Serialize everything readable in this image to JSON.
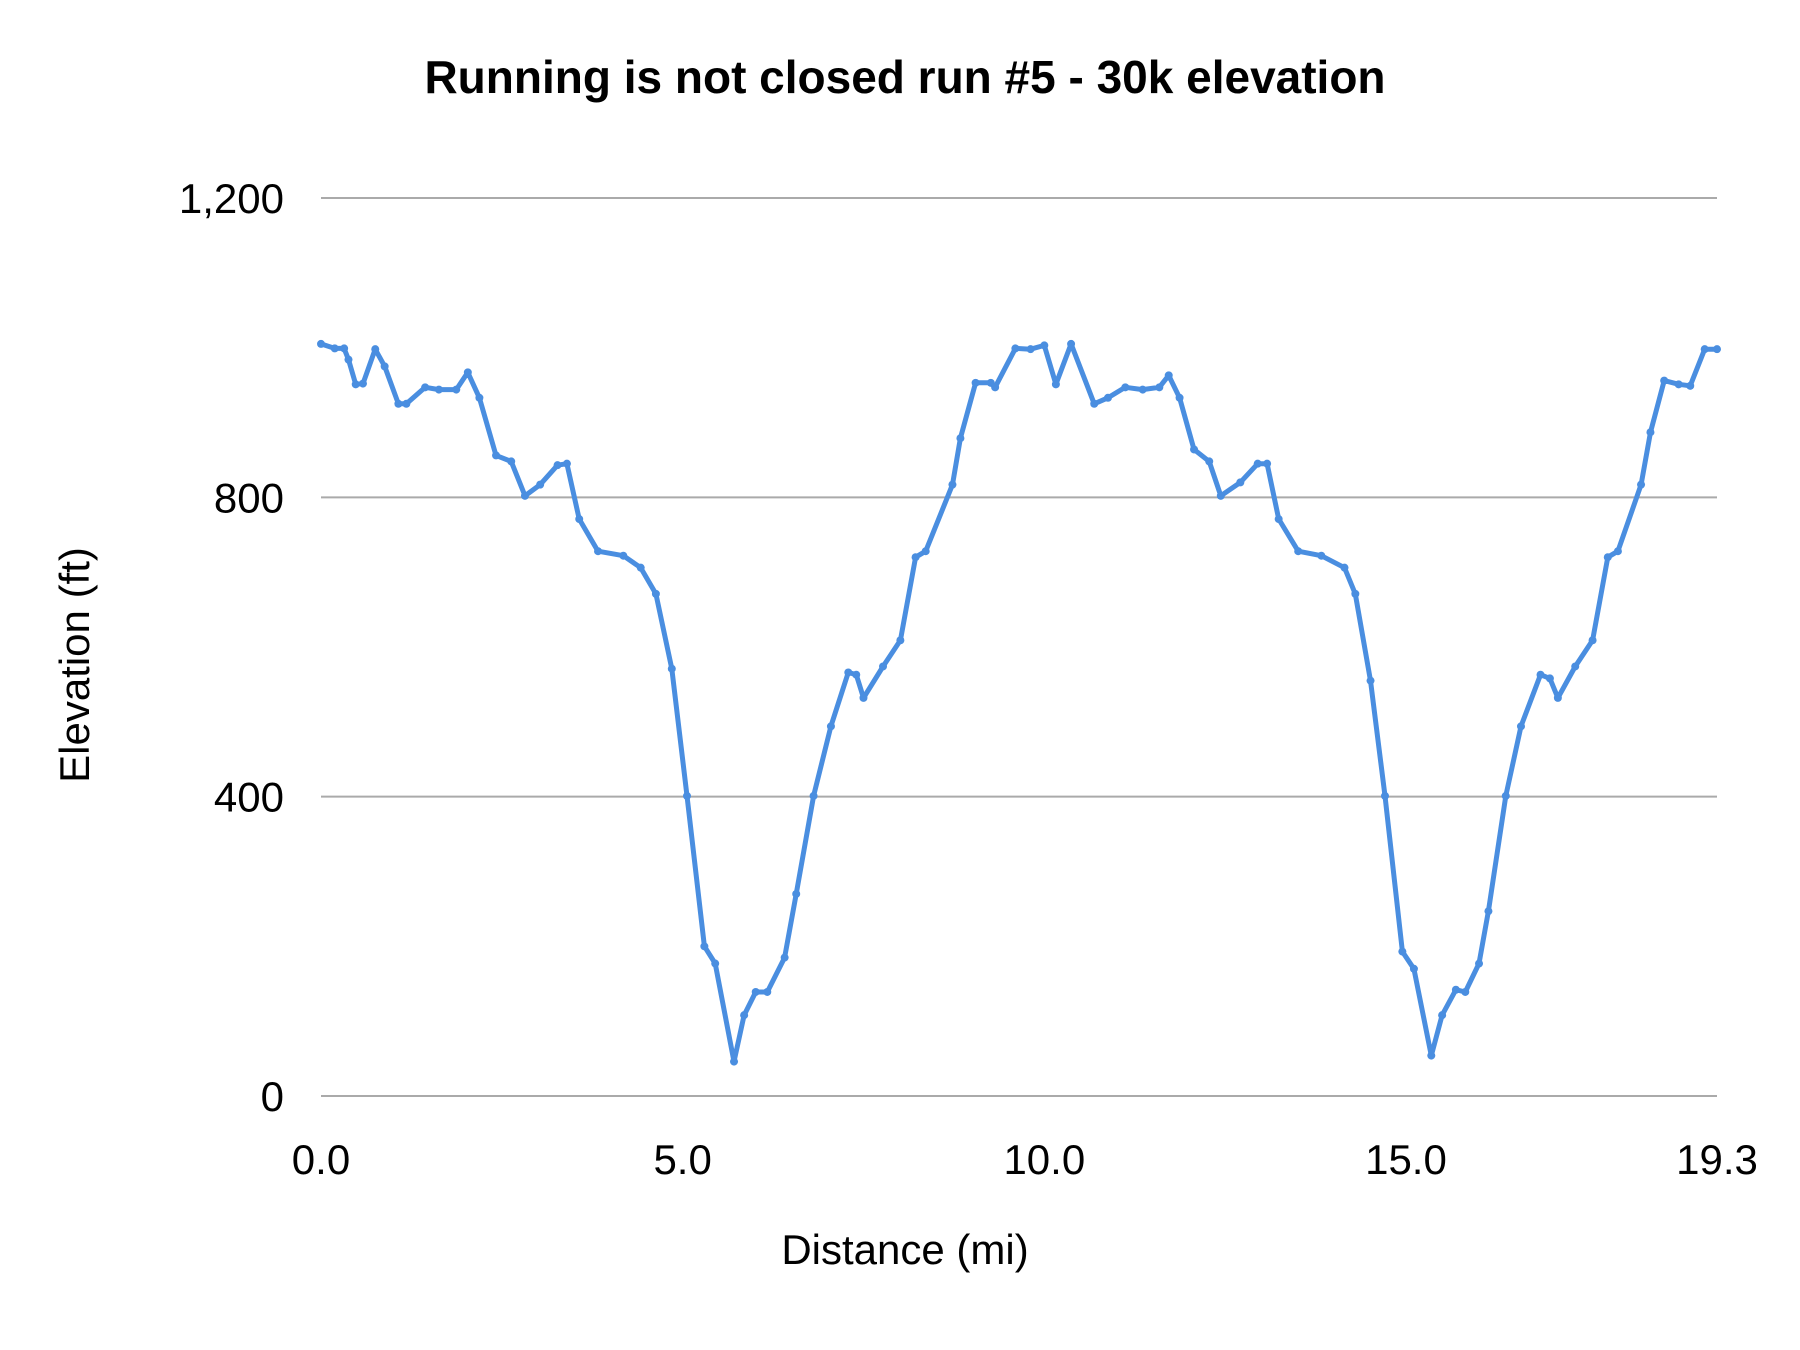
{
  "chart_data": {
    "type": "line",
    "title": "Running is not closed run #5 - 30k elevation",
    "xlabel": "Distance (mi)",
    "ylabel": "Elevation (ft)",
    "xlim": [
      0,
      19.3
    ],
    "ylim": [
      0,
      1200
    ],
    "x_ticks": [
      "0.0",
      "5.0",
      "10.0",
      "15.0",
      "19.3"
    ],
    "x_tick_values": [
      0,
      5,
      10,
      15,
      19.3
    ],
    "y_ticks": [
      "0",
      "400",
      "800",
      "1,200"
    ],
    "y_tick_values": [
      0,
      400,
      800,
      1200
    ],
    "grid": "horizontal",
    "legend": "none",
    "series_color": "#4a8ee0",
    "grid_color": "#aaaaaa",
    "series": [
      {
        "x": [
          0,
          0.19,
          0.32,
          0.38,
          0.48,
          0.58,
          0.75,
          0.88,
          1.07,
          1.18,
          1.44,
          1.63,
          1.87,
          2.03,
          2.19,
          2.42,
          2.63,
          2.82,
          3.03,
          3.27,
          3.4,
          3.57,
          3.83,
          4.18,
          4.42,
          4.63,
          4.85,
          5.06,
          5.3,
          5.45,
          5.71,
          5.85,
          6.01,
          6.17,
          6.41,
          6.57,
          6.81,
          7.05,
          7.29,
          7.4,
          7.5,
          7.77,
          8.01,
          8.22,
          8.36,
          8.73,
          8.84,
          9.05,
          9.26,
          9.32,
          9.6,
          9.81,
          10.0,
          10.16,
          10.37,
          10.69,
          10.88,
          11.12,
          11.36,
          11.59,
          11.72,
          11.87,
          12.07,
          12.28,
          12.44,
          12.71,
          12.95,
          13.08,
          13.24,
          13.51,
          13.83,
          14.15,
          14.3,
          14.51,
          14.71,
          14.95,
          15.11,
          15.35,
          15.5,
          15.69,
          15.82,
          16.01,
          16.14,
          16.38,
          16.59,
          16.86,
          16.99,
          17.1,
          17.34,
          17.58,
          17.79,
          17.93,
          18.25,
          18.38,
          18.57,
          18.77,
          18.93,
          19.13,
          19.3
        ],
        "y": [
          1005,
          999,
          999,
          984,
          951,
          952,
          998,
          975,
          925,
          925,
          947,
          944,
          944,
          967,
          933,
          856,
          848,
          802,
          817,
          843,
          845,
          771,
          728,
          722,
          706,
          671,
          571,
          401,
          200,
          177,
          46,
          108,
          139,
          139,
          185,
          270,
          401,
          494,
          566,
          563,
          532,
          574,
          609,
          720,
          728,
          817,
          879,
          953,
          953,
          947,
          999,
          998,
          1003,
          951,
          1005,
          925,
          933,
          947,
          944,
          947,
          963,
          933,
          864,
          848,
          802,
          820,
          845,
          845,
          771,
          728,
          722,
          706,
          671,
          555,
          401,
          193,
          170,
          54,
          108,
          142,
          139,
          177,
          247,
          401,
          494,
          563,
          558,
          532,
          574,
          609,
          720,
          728,
          817,
          887,
          956,
          951,
          949,
          998,
          998
        ]
      }
    ]
  }
}
